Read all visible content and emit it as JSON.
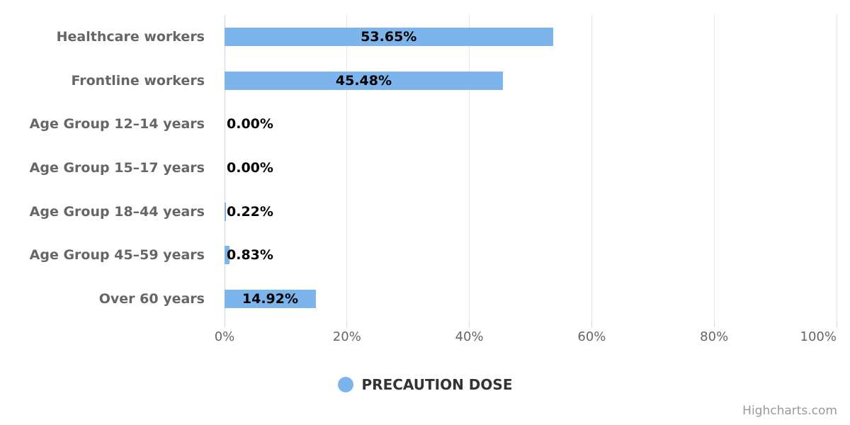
{
  "chart_data": {
    "type": "bar",
    "orientation": "horizontal",
    "categories": [
      "Healthcare workers",
      "Frontline workers",
      "Age Group 12–14 years",
      "Age Group 15–17 years",
      "Age Group 18–44 years",
      "Age Group 45–59 years",
      "Over 60 years"
    ],
    "series": [
      {
        "name": "PRECAUTION DOSE",
        "values": [
          53.65,
          45.48,
          0.0,
          0.0,
          0.22,
          0.83,
          14.92
        ],
        "value_labels": [
          "53.65%",
          "45.48%",
          "0.00%",
          "0.00%",
          "0.22%",
          "0.83%",
          "14.92%"
        ]
      }
    ],
    "title": "",
    "xlabel": "",
    "ylabel": "",
    "xlim": [
      0,
      100
    ],
    "x_ticks": [
      "0%",
      "20%",
      "40%",
      "60%",
      "80%",
      "100%"
    ],
    "x_tick_values": [
      0,
      20,
      40,
      60,
      80,
      100
    ],
    "grid": true,
    "legend_position": "bottom-center"
  },
  "colors": {
    "bar": "#7cb5ec",
    "gridline": "#e6e6e6",
    "axis_line": "#ccd6eb",
    "axis_label": "#666666",
    "category_label": "#666666",
    "value_label": "#000000",
    "legend_text": "#333333",
    "credits_text": "#999999"
  },
  "legend": {
    "marker_icon": "circle-icon",
    "label": "PRECAUTION DOSE"
  },
  "credits": {
    "label": "Highcharts.com"
  }
}
